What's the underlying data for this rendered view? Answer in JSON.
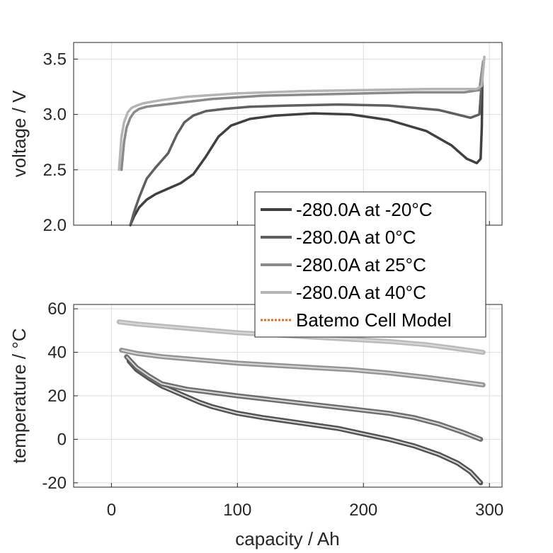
{
  "chart_data": [
    {
      "type": "line",
      "ylabel": "voltage / V",
      "xlim": [
        -30,
        310
      ],
      "ylim": [
        2.0,
        3.65
      ],
      "xticks": [
        "0",
        "100",
        "200",
        "300"
      ],
      "yticks": [
        "2.0",
        "2.5",
        "3.0",
        "3.5"
      ],
      "ytick_values": [
        2.0,
        2.5,
        3.0,
        3.5
      ],
      "grid": true,
      "series": [
        {
          "name": "-280.0A at -20°C",
          "color": "#404040",
          "x": [
            15,
            18,
            22,
            28,
            35,
            45,
            55,
            65,
            75,
            85,
            95,
            110,
            130,
            160,
            190,
            220,
            250,
            270,
            282,
            290,
            293,
            294,
            294.5
          ],
          "y": [
            2.0,
            2.08,
            2.16,
            2.23,
            2.28,
            2.33,
            2.38,
            2.46,
            2.62,
            2.8,
            2.9,
            2.96,
            2.99,
            3.01,
            3.0,
            2.95,
            2.85,
            2.72,
            2.6,
            2.56,
            2.6,
            2.9,
            3.4
          ]
        },
        {
          "name": "-280.0A at 0°C",
          "color": "#5f5f5f",
          "x": [
            15,
            18,
            22,
            28,
            35,
            45,
            52,
            58,
            65,
            75,
            90,
            110,
            140,
            180,
            220,
            260,
            285,
            292,
            294
          ],
          "y": [
            2.0,
            2.12,
            2.25,
            2.42,
            2.52,
            2.65,
            2.82,
            2.93,
            2.99,
            3.03,
            3.05,
            3.07,
            3.08,
            3.09,
            3.08,
            3.04,
            2.97,
            3.0,
            3.3
          ]
        },
        {
          "name": "-280.0A at 25°C",
          "color": "#8a8a8a",
          "x": [
            8,
            10,
            12,
            15,
            18,
            22,
            28,
            35,
            50,
            80,
            120,
            160,
            200,
            240,
            280,
            292,
            295
          ],
          "y": [
            2.5,
            2.75,
            2.88,
            2.97,
            3.02,
            3.05,
            3.07,
            3.08,
            3.1,
            3.14,
            3.17,
            3.18,
            3.19,
            3.2,
            3.2,
            3.22,
            3.48
          ]
        },
        {
          "name": "-280.0A at 40°C",
          "color": "#b4b4b4",
          "x": [
            6,
            8,
            10,
            13,
            16,
            20,
            25,
            30,
            40,
            60,
            100,
            150,
            200,
            250,
            290,
            294,
            296
          ],
          "y": [
            2.5,
            2.8,
            2.93,
            3.02,
            3.06,
            3.08,
            3.1,
            3.11,
            3.13,
            3.16,
            3.19,
            3.21,
            3.22,
            3.23,
            3.23,
            3.26,
            3.52
          ]
        }
      ]
    },
    {
      "type": "line",
      "xlabel": "capacity / Ah",
      "ylabel": "temperature / °C",
      "xlim": [
        -30,
        310
      ],
      "ylim": [
        -22,
        62
      ],
      "xticks": [
        "0",
        "100",
        "200",
        "300"
      ],
      "yticks": [
        "-20",
        "0",
        "20",
        "40",
        "60"
      ],
      "ytick_values": [
        -20,
        0,
        20,
        40,
        60
      ],
      "grid": true,
      "series": [
        {
          "name": "-280.0A at -20°C",
          "color": "#404040",
          "x": [
            14,
            20,
            30,
            40,
            50,
            60,
            70,
            80,
            90,
            100,
            120,
            150,
            180,
            200,
            220,
            240,
            260,
            275,
            285,
            293
          ],
          "y": [
            36,
            32,
            28,
            24.5,
            22,
            19.5,
            17,
            15,
            13.5,
            12,
            10,
            7.5,
            5,
            2.5,
            0,
            -3,
            -7,
            -11,
            -15,
            -20
          ]
        },
        {
          "name": "-280.0A at 0°C",
          "color": "#5f5f5f",
          "x": [
            12,
            20,
            30,
            40,
            60,
            80,
            100,
            130,
            160,
            190,
            220,
            240,
            260,
            280,
            293
          ],
          "y": [
            38,
            33,
            29,
            25.5,
            23,
            21.5,
            20,
            18,
            16,
            14,
            12,
            10,
            7,
            3,
            0
          ]
        },
        {
          "name": "-280.0A at 25°C",
          "color": "#8a8a8a",
          "x": [
            8,
            20,
            40,
            70,
            100,
            130,
            160,
            190,
            220,
            250,
            270,
            295
          ],
          "y": [
            41,
            39.5,
            38,
            36.5,
            35,
            34,
            33,
            32,
            30.5,
            28.5,
            27,
            25
          ]
        },
        {
          "name": "-280.0A at 40°C",
          "color": "#b4b4b4",
          "x": [
            6,
            20,
            40,
            70,
            100,
            130,
            160,
            190,
            220,
            250,
            270,
            295
          ],
          "y": [
            54,
            53,
            52,
            50.5,
            49,
            48,
            47,
            46,
            45,
            43.5,
            42,
            40
          ]
        }
      ]
    }
  ],
  "legend": {
    "placement": "right",
    "entries": [
      {
        "label": "-280.0A at -20°C",
        "color": "#404040",
        "style": "solid"
      },
      {
        "label": "-280.0A at 0°C",
        "color": "#5f5f5f",
        "style": "solid"
      },
      {
        "label": "-280.0A at 25°C",
        "color": "#8a8a8a",
        "style": "solid"
      },
      {
        "label": "-280.0A at 40°C",
        "color": "#b4b4b4",
        "style": "solid"
      },
      {
        "label": "Batemo Cell Model",
        "color": "#e8681e",
        "style": "dotted"
      }
    ]
  }
}
